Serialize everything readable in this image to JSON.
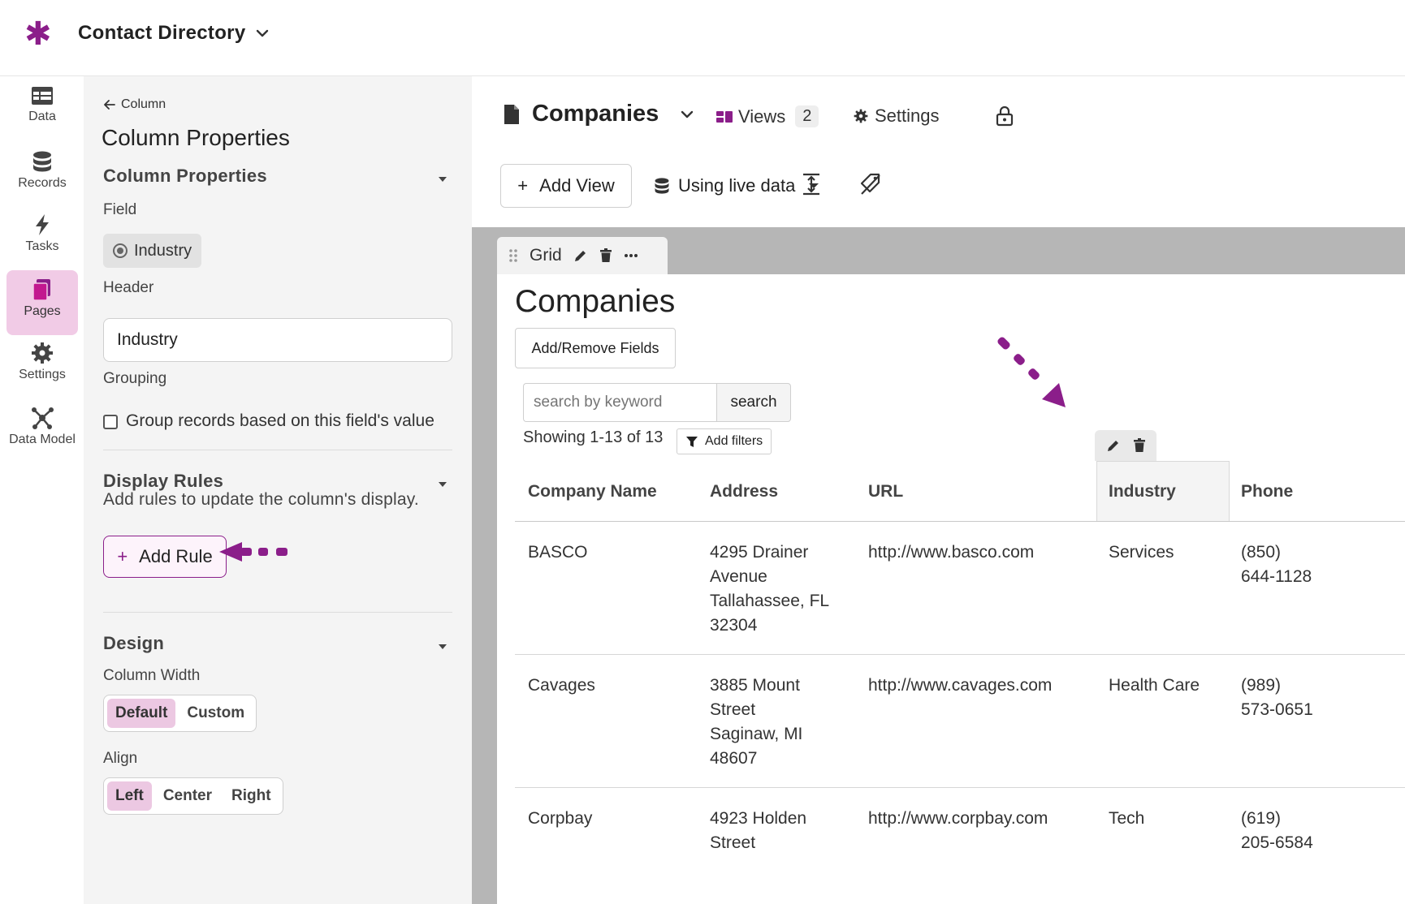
{
  "app": {
    "title": "Contact Directory"
  },
  "rail": [
    {
      "label": "Data"
    },
    {
      "label": "Records"
    },
    {
      "label": "Tasks"
    },
    {
      "label": "Pages"
    },
    {
      "label": "Settings"
    },
    {
      "label": "Data Model"
    }
  ],
  "panel": {
    "back": "Column",
    "title": "Column Properties",
    "section_column": "Column Properties",
    "field_label": "Field",
    "field_value": "Industry",
    "header_label": "Header",
    "header_value": "Industry",
    "grouping_label": "Grouping",
    "grouping_checkbox": "Group records based on this field's value",
    "section_rules": "Display Rules",
    "rules_hint": "Add rules to update the column's display.",
    "add_rule": "Add Rule",
    "section_design": "Design",
    "width_label": "Column Width",
    "width_options": [
      "Default",
      "Custom"
    ],
    "align_label": "Align",
    "align_options": [
      "Left",
      "Center",
      "Right"
    ]
  },
  "page": {
    "title": "Companies",
    "views_label": "Views",
    "views_count": "2",
    "settings_label": "Settings",
    "add_view": "Add View",
    "data_source": "Using live data"
  },
  "grid": {
    "tab_label": "Grid",
    "title": "Companies",
    "add_remove_fields": "Add/Remove Fields",
    "search_placeholder": "search by keyword",
    "search_button": "search",
    "showing": "Showing 1-13 of 13",
    "add_filters": "Add filters",
    "columns": [
      "Company Name",
      "Address",
      "URL",
      "Industry",
      "Phone"
    ],
    "rows": [
      {
        "company": "BASCO",
        "address": [
          "4295 Drainer",
          "Avenue",
          "Tallahassee, FL",
          "32304"
        ],
        "url": "http://www.basco.com",
        "industry": "Services",
        "phone": [
          "(850)",
          "644-1128"
        ]
      },
      {
        "company": "Cavages",
        "address": [
          "3885 Mount",
          "Street",
          "Saginaw, MI",
          "48607"
        ],
        "url": "http://www.cavages.com",
        "industry": "Health Care",
        "phone": [
          "(989)",
          "573-0651"
        ]
      },
      {
        "company": "Corpbay",
        "address": [
          "4923 Holden",
          "Street"
        ],
        "url": "http://www.corpbay.com",
        "industry": "Tech",
        "phone": [
          "(619)",
          "205-6584"
        ]
      }
    ]
  },
  "colors": {
    "accent": "#8b1e8a",
    "active_nav": "#f1cbe6",
    "panel_bg": "#f4f4f4",
    "canvas_bg": "#b6b6b6"
  }
}
